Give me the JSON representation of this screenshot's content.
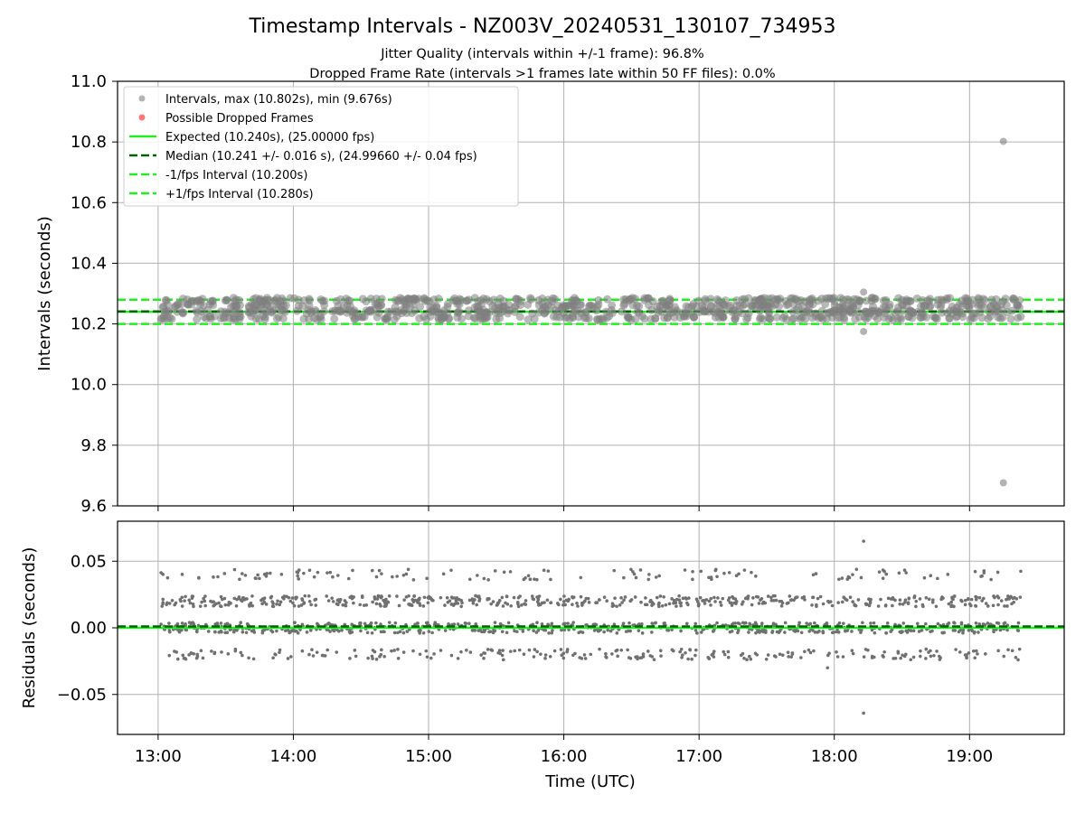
{
  "chart_data": [
    {
      "type": "scatter",
      "panel": "top",
      "title": "Timestamp Intervals - NZ003V_20240531_130107_734953",
      "subtitle_lines": [
        "Jitter Quality (intervals within +/-1 frame): 96.8%",
        "Dropped Frame Rate (intervals >1 frames late within 50 FF files): 0.0%"
      ],
      "xlabel": "",
      "ylabel": "Intervals (seconds)",
      "xlim": [
        "12:42",
        "19:42"
      ],
      "ylim": [
        9.6,
        11.0
      ],
      "y_ticks": [
        "9.6",
        "9.8",
        "10.0",
        "10.2",
        "10.4",
        "10.6",
        "10.8",
        "11.0"
      ],
      "grid": true,
      "legend_position": "upper-left",
      "series": [
        {
          "name": "Intervals, max (10.802s), min (9.676s)",
          "kind": "points",
          "color": "#808080",
          "x_range": [
            "13:01",
            "19:23"
          ],
          "band_values": [
            10.22,
            10.24,
            10.26,
            10.28
          ],
          "outliers": [
            {
              "x": "19:15",
              "y": 10.802
            },
            {
              "x": "19:15",
              "y": 9.676
            },
            {
              "x": "18:13",
              "y": 10.305
            },
            {
              "x": "18:13",
              "y": 10.175
            }
          ]
        },
        {
          "name": "Possible Dropped Frames",
          "kind": "points",
          "color": "#ff5555",
          "values": []
        },
        {
          "name": "Expected (10.240s), (25.00000 fps)",
          "kind": "hline",
          "y": 10.24,
          "color": "#22ee22",
          "style": "solid"
        },
        {
          "name": "Median (10.241 +/- 0.016 s), (24.99660 +/- 0.04 fps)",
          "kind": "hline",
          "y": 10.241,
          "color": "#006400",
          "style": "dashed"
        },
        {
          "name": "-1/fps Interval (10.200s)",
          "kind": "hline",
          "y": 10.2,
          "color": "#22ee22",
          "style": "dashed"
        },
        {
          "name": "+1/fps Interval (10.280s)",
          "kind": "hline",
          "y": 10.28,
          "color": "#22ee22",
          "style": "dashed"
        }
      ]
    },
    {
      "type": "scatter",
      "panel": "bottom",
      "xlabel": "Time (UTC)",
      "ylabel": "Residuals (seconds)",
      "xlim": [
        "12:42",
        "19:42"
      ],
      "ylim": [
        -0.08,
        0.08
      ],
      "x_ticks": [
        "13:00",
        "14:00",
        "15:00",
        "16:00",
        "17:00",
        "18:00",
        "19:00"
      ],
      "y_ticks": [
        "−0.05",
        "0.00",
        "0.05"
      ],
      "y_tick_values": [
        -0.05,
        0.0,
        0.05
      ],
      "grid": true,
      "series": [
        {
          "name": "residuals",
          "kind": "points",
          "color": "#707070",
          "x_range": [
            "13:01",
            "19:23"
          ],
          "band_values": [
            -0.02,
            0.0,
            0.02,
            0.04
          ],
          "outliers": [
            {
              "x": "18:13",
              "y": 0.065
            },
            {
              "x": "18:13",
              "y": -0.064
            },
            {
              "x": "17:57",
              "y": -0.03
            }
          ]
        },
        {
          "kind": "hline",
          "y": 0.0,
          "color": "#22ee22",
          "style": "solid"
        },
        {
          "kind": "hline",
          "y": 0.001,
          "color": "#006400",
          "style": "dashed"
        }
      ]
    }
  ]
}
